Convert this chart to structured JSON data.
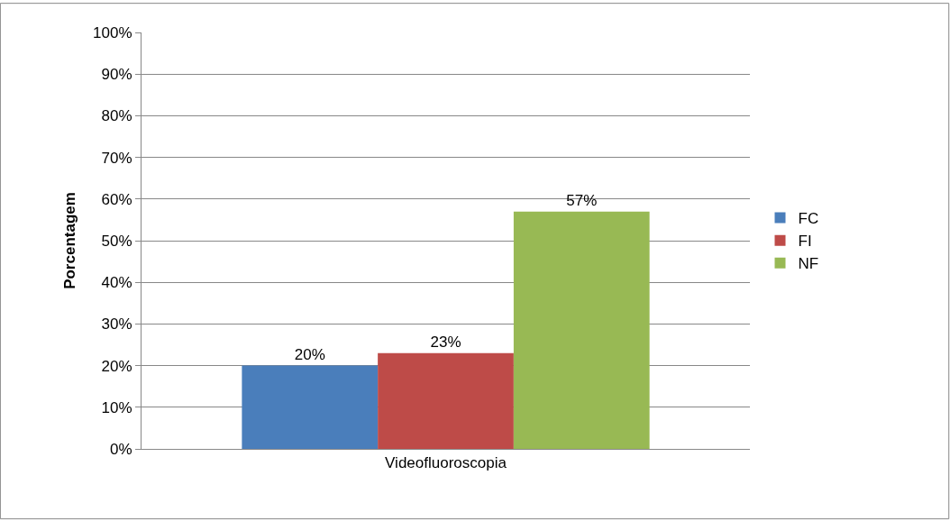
{
  "chart_data": {
    "type": "bar",
    "ylabel": "Porcentagem",
    "categories": [
      "Videofluoroscopia"
    ],
    "series": [
      {
        "name": "FC",
        "color": "#4a7ebb",
        "values": [
          20
        ],
        "value_labels": [
          "20%"
        ]
      },
      {
        "name": "FI",
        "color": "#be4b48",
        "values": [
          23
        ],
        "value_labels": [
          "23%"
        ]
      },
      {
        "name": "NF",
        "color": "#98b954",
        "values": [
          57
        ],
        "value_labels": [
          "57%"
        ]
      }
    ],
    "ylim": [
      0,
      100
    ],
    "yticks": [
      {
        "value": 0,
        "label": "0%"
      },
      {
        "value": 10,
        "label": "10%"
      },
      {
        "value": 20,
        "label": "20%"
      },
      {
        "value": 30,
        "label": "30%"
      },
      {
        "value": 40,
        "label": "40%"
      },
      {
        "value": 50,
        "label": "50%"
      },
      {
        "value": 60,
        "label": "60%"
      },
      {
        "value": 70,
        "label": "70%"
      },
      {
        "value": 80,
        "label": "80%"
      },
      {
        "value": 90,
        "label": "90%"
      },
      {
        "value": 100,
        "label": "100%"
      }
    ],
    "grid": "y",
    "legend": "right"
  }
}
